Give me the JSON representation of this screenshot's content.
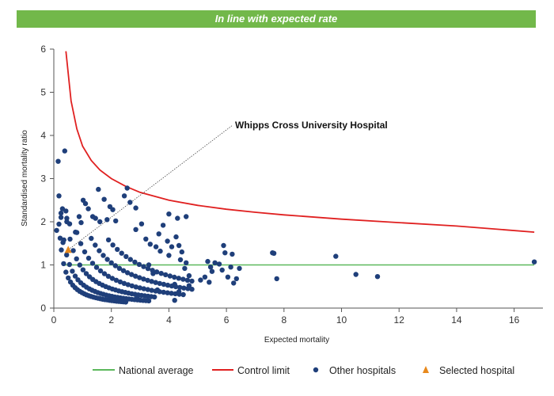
{
  "banner": {
    "label": "In line with expected rate",
    "color": "#72b84a"
  },
  "chart_data": {
    "type": "scatter",
    "title": "",
    "xlabel": "Expected mortality",
    "ylabel": "Standardised mortality ratio",
    "xlim": [
      0,
      17
    ],
    "ylim": [
      0,
      6
    ],
    "xticks": [
      0,
      2,
      4,
      6,
      8,
      10,
      12,
      14,
      16
    ],
    "yticks": [
      0,
      1,
      2,
      3,
      4,
      5,
      6
    ],
    "grid": false,
    "legend_position": "bottom",
    "annotation": {
      "text": "Whipps Cross University Hospital",
      "points_to": [
        0.5,
        1.35
      ]
    },
    "national_average": {
      "name": "National average",
      "value": 1.0,
      "x_range": [
        0.4,
        16.7
      ],
      "color": "#5cb85c"
    },
    "control_limit": {
      "name": "Control limit",
      "color": "#e02020",
      "points": [
        [
          0.42,
          5.95
        ],
        [
          0.6,
          4.8
        ],
        [
          0.8,
          4.15
        ],
        [
          1.0,
          3.75
        ],
        [
          1.3,
          3.42
        ],
        [
          1.6,
          3.2
        ],
        [
          2.0,
          3.0
        ],
        [
          2.5,
          2.82
        ],
        [
          3.0,
          2.68
        ],
        [
          4.0,
          2.5
        ],
        [
          5.0,
          2.38
        ],
        [
          6.0,
          2.29
        ],
        [
          7.0,
          2.22
        ],
        [
          8.0,
          2.16
        ],
        [
          10.0,
          2.06
        ],
        [
          12.0,
          1.98
        ],
        [
          14.0,
          1.9
        ],
        [
          16.7,
          1.76
        ]
      ]
    },
    "other_hospitals": {
      "name": "Other hospitals",
      "color": "#1f3f7a",
      "points": [
        [
          0.1,
          1.8
        ],
        [
          0.15,
          3.4
        ],
        [
          0.18,
          2.6
        ],
        [
          0.25,
          2.1
        ],
        [
          0.22,
          1.62
        ],
        [
          0.3,
          2.3
        ],
        [
          0.32,
          1.52
        ],
        [
          0.38,
          3.64
        ],
        [
          0.42,
          2.25
        ],
        [
          0.45,
          2.08
        ],
        [
          0.55,
          1.95
        ],
        [
          0.75,
          1.76
        ],
        [
          0.88,
          2.12
        ],
        [
          0.95,
          1.98
        ],
        [
          1.02,
          2.5
        ],
        [
          1.1,
          2.42
        ],
        [
          1.2,
          2.3
        ],
        [
          1.35,
          2.12
        ],
        [
          1.45,
          2.08
        ],
        [
          1.55,
          2.75
        ],
        [
          1.6,
          2.0
        ],
        [
          1.75,
          2.52
        ],
        [
          1.85,
          2.05
        ],
        [
          1.95,
          2.35
        ],
        [
          2.05,
          2.28
        ],
        [
          2.15,
          2.02
        ],
        [
          2.45,
          2.6
        ],
        [
          2.55,
          2.78
        ],
        [
          2.65,
          2.45
        ],
        [
          2.85,
          2.32
        ],
        [
          3.05,
          1.95
        ],
        [
          2.85,
          1.82
        ],
        [
          3.2,
          1.6
        ],
        [
          3.35,
          1.48
        ],
        [
          3.55,
          1.42
        ],
        [
          3.7,
          1.32
        ],
        [
          3.8,
          1.92
        ],
        [
          3.95,
          1.55
        ],
        [
          4.1,
          1.42
        ],
        [
          4.25,
          1.65
        ],
        [
          4.3,
          2.08
        ],
        [
          4.35,
          1.45
        ],
        [
          4.45,
          1.3
        ],
        [
          4.6,
          1.05
        ],
        [
          4.0,
          2.18
        ],
        [
          4.6,
          2.12
        ],
        [
          3.65,
          1.72
        ],
        [
          4.0,
          1.22
        ],
        [
          4.4,
          1.12
        ],
        [
          4.55,
          0.92
        ],
        [
          4.7,
          0.75
        ],
        [
          5.1,
          0.65
        ],
        [
          5.25,
          0.72
        ],
        [
          5.35,
          1.08
        ],
        [
          5.45,
          0.95
        ],
        [
          5.5,
          0.85
        ],
        [
          5.6,
          1.05
        ],
        [
          5.75,
          1.02
        ],
        [
          5.85,
          0.88
        ],
        [
          5.9,
          1.45
        ],
        [
          5.95,
          1.28
        ],
        [
          6.05,
          0.72
        ],
        [
          6.15,
          0.95
        ],
        [
          6.2,
          1.25
        ],
        [
          6.25,
          0.58
        ],
        [
          6.35,
          0.68
        ],
        [
          6.45,
          0.92
        ],
        [
          7.6,
          1.28
        ],
        [
          7.65,
          1.27
        ],
        [
          7.75,
          0.68
        ],
        [
          9.8,
          1.2
        ],
        [
          10.5,
          0.78
        ],
        [
          11.25,
          0.73
        ],
        [
          16.7,
          1.07
        ],
        [
          4.2,
          0.18
        ],
        [
          4.35,
          0.38
        ],
        [
          2.9,
          0.25
        ],
        [
          3.6,
          0.42
        ],
        [
          5.4,
          0.6
        ],
        [
          3.3,
          1.0
        ],
        [
          3.45,
          0.8
        ],
        [
          4.2,
          0.55
        ],
        [
          4.7,
          0.52
        ]
      ],
      "curves": [
        {
          "c": 0.35,
          "x": [
            0.18,
            2.5
          ],
          "n": 30
        },
        {
          "c": 0.55,
          "x": [
            0.25,
            3.3
          ],
          "n": 32
        },
        {
          "c": 0.9,
          "x": [
            0.45,
            3.5
          ],
          "n": 28
        },
        {
          "c": 1.4,
          "x": [
            0.8,
            4.5
          ],
          "n": 28
        },
        {
          "c": 2.1,
          "x": [
            1.3,
            4.8
          ],
          "n": 26
        },
        {
          "c": 3.0,
          "x": [
            1.9,
            4.8
          ],
          "n": 20
        }
      ]
    },
    "selected_hospital": {
      "name": "Selected hospital",
      "color": "#e8891c",
      "x": 0.5,
      "y": 1.35
    },
    "legend": [
      "National average",
      "Control limit",
      "Other hospitals",
      "Selected hospital"
    ]
  }
}
